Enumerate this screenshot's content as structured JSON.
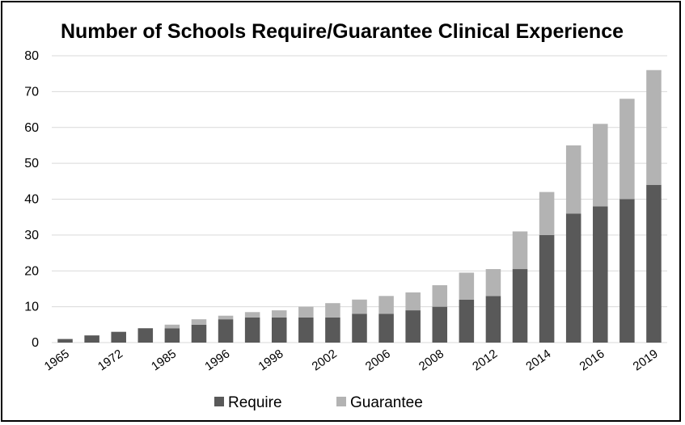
{
  "chart_data": {
    "type": "bar",
    "stacked": true,
    "title": "Number of Schools Require/Guarantee Clinical Experience",
    "xlabel": "",
    "ylabel": "",
    "ylim": [
      0,
      80
    ],
    "yticks": [
      0,
      10,
      20,
      30,
      40,
      50,
      60,
      70,
      80
    ],
    "grid": true,
    "legend": "bottom",
    "categories": [
      "1965",
      "",
      "1972",
      "",
      "1985",
      "",
      "1996",
      "",
      "1998",
      "",
      "2002",
      "",
      "2006",
      "",
      "2008",
      "",
      "2012",
      "",
      "2014",
      "",
      "2016",
      "",
      "2019"
    ],
    "series": [
      {
        "name": "Require",
        "color": "#595959",
        "values": [
          1,
          2,
          3,
          4,
          4,
          5,
          6.5,
          7,
          7,
          7,
          7,
          8,
          8,
          9,
          10,
          12,
          13,
          20.5,
          30,
          36,
          38,
          40,
          44
        ]
      },
      {
        "name": "Guarantee",
        "color": "#b3b3b3",
        "values": [
          0,
          0,
          0,
          0,
          1,
          1.5,
          1,
          1.5,
          2,
          3,
          4,
          4,
          5,
          5,
          6,
          7.5,
          7.5,
          10.5,
          12,
          19,
          23,
          28,
          32
        ]
      }
    ]
  }
}
